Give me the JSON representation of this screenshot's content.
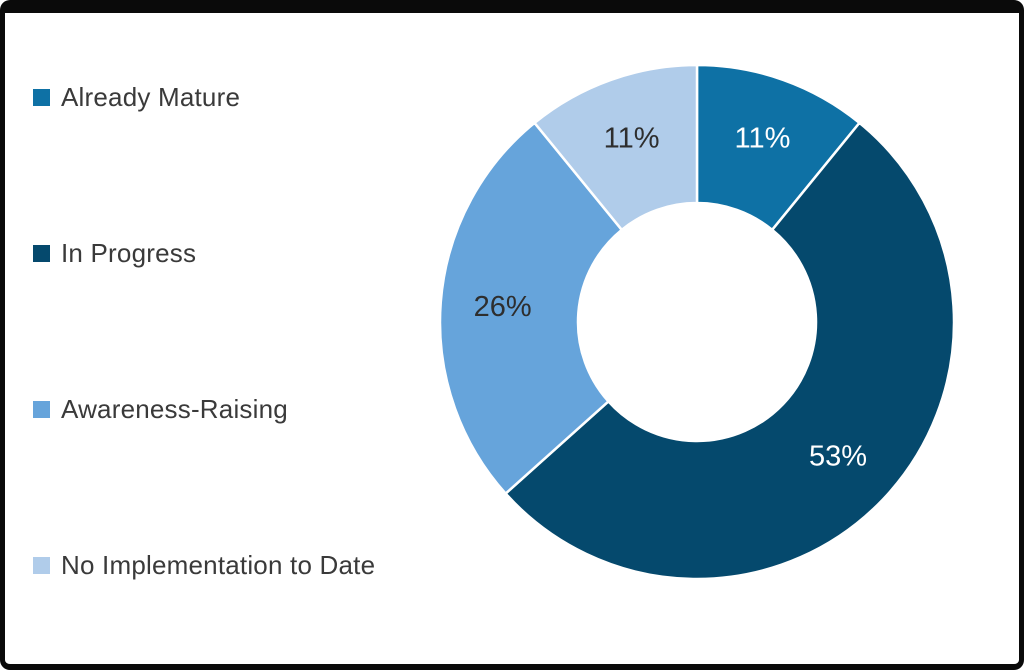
{
  "chart_data": {
    "type": "pie",
    "variant": "donut",
    "categories": [
      "Already Mature",
      "In Progress",
      "Awareness-Raising",
      "No Implementation to Date"
    ],
    "values": [
      11,
      53,
      26,
      11
    ],
    "unit": "%",
    "labels": [
      "11%",
      "53%",
      "26%",
      "11%"
    ],
    "colors": [
      "#0e71a5",
      "#05496d",
      "#66a4db",
      "#b0ccea"
    ],
    "label_colors": [
      "#ffffff",
      "#ffffff",
      "#2e2e2e",
      "#2e2e2e"
    ],
    "start_angle_deg": 0,
    "direction": "clockwise",
    "inner_radius_ratio": 0.46,
    "legend_position": "left",
    "title": "",
    "grid": false
  },
  "legend": {
    "items": [
      {
        "label": "Already Mature",
        "color": "#0e71a5"
      },
      {
        "label": "In Progress",
        "color": "#05496d"
      },
      {
        "label": "Awareness-Raising",
        "color": "#66a4db"
      },
      {
        "label": "No Implementation to Date",
        "color": "#b0ccea"
      }
    ]
  },
  "frame": {
    "border_color": "#0a0a0a",
    "background_color": "#ffffff"
  }
}
